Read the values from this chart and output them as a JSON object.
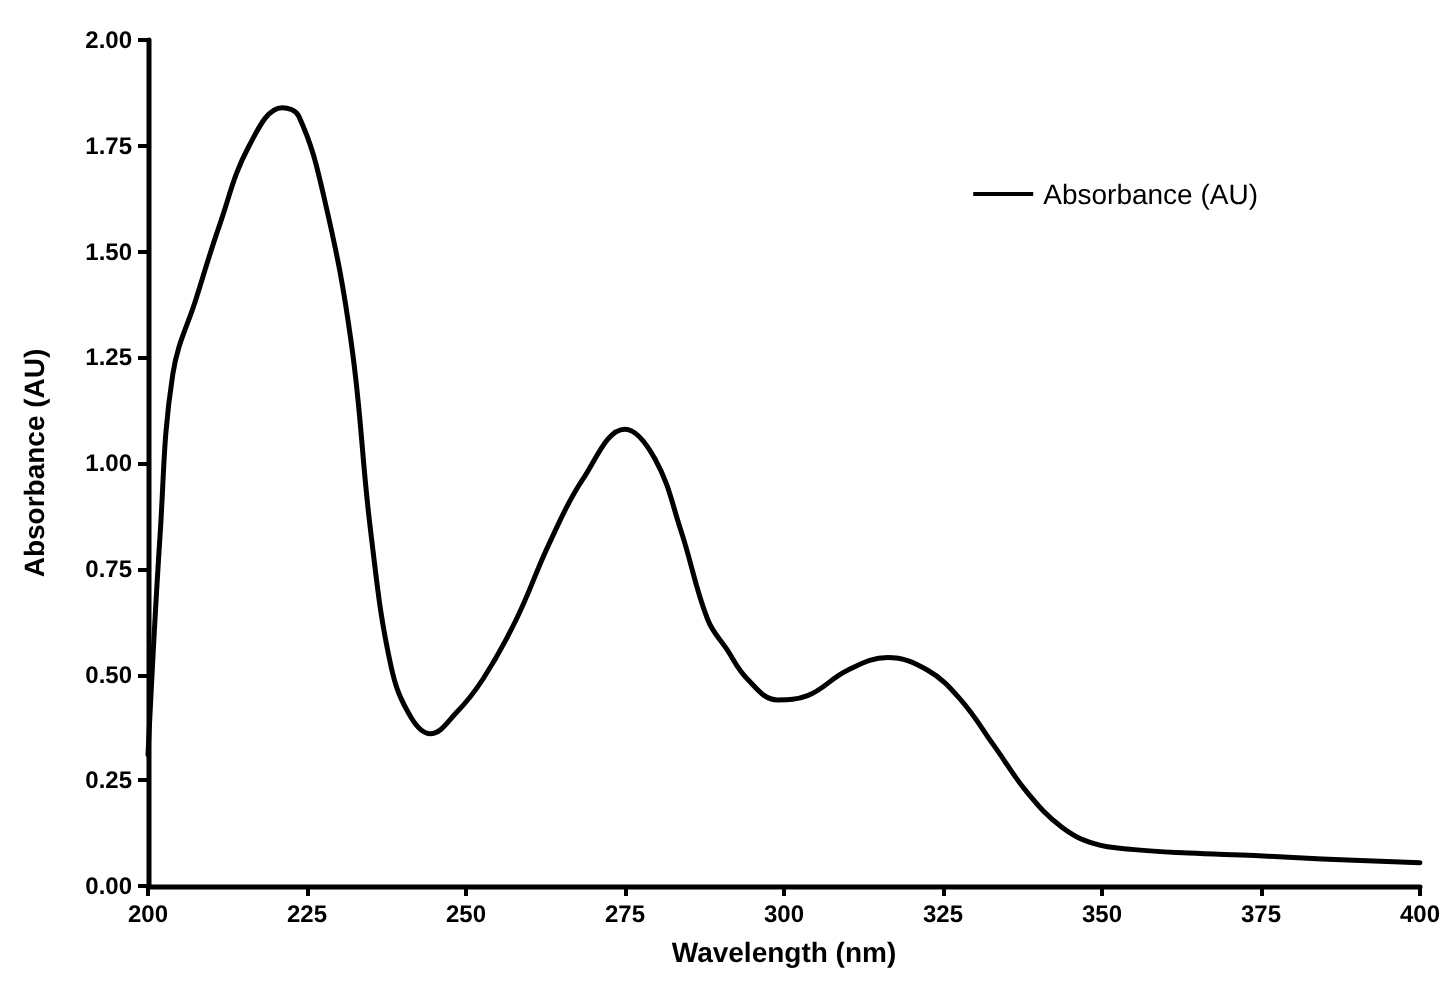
{
  "chart_data": {
    "type": "line",
    "xlabel": "Wavelength (nm)",
    "ylabel": "Absorbance (AU)",
    "xlim": [
      200,
      400
    ],
    "xticks": [
      200,
      225,
      250,
      275,
      300,
      325,
      350,
      375,
      400
    ],
    "ylim": [
      0,
      2
    ],
    "yticks": [
      {
        "value": 0,
        "label": "0.00"
      },
      {
        "value": 0.25,
        "label": "0.25"
      },
      {
        "value": 0.5,
        "label": "0.50"
      },
      {
        "value": 0.75,
        "label": "0.75"
      },
      {
        "value": 1,
        "label": "1.00"
      },
      {
        "value": 1.25,
        "label": "1.25"
      },
      {
        "value": 1.5,
        "label": "1.50"
      },
      {
        "value": 1.75,
        "label": "1.75"
      },
      {
        "value": 2,
        "label": "2.00"
      }
    ],
    "grid": false,
    "legend": "top right",
    "marker": "none",
    "line_style": "solid",
    "series": [
      {
        "name": "Absorbance (AU)",
        "color": "#000000",
        "x": [
          200,
          201.9,
          203.9,
          207.6,
          211.2,
          215.9,
          221.1,
          223.7,
          227.8,
          232,
          235,
          238.2,
          241.3,
          244.4,
          248.5,
          252.7,
          257.9,
          263.1,
          268.3,
          275,
          279.7,
          283.8,
          288,
          291,
          294.2,
          299,
          303.7,
          310,
          316.3,
          322.6,
          327.8,
          333.1,
          338.3,
          343.6,
          348.8,
          355.1,
          363.6,
          374,
          384.6,
          400
        ],
        "values": [
          0.31,
          0.83,
          1.21,
          1.39,
          1.56,
          1.75,
          1.84,
          1.82,
          1.62,
          1.28,
          0.84,
          0.52,
          0.4,
          0.36,
          0.41,
          0.49,
          0.63,
          0.81,
          0.96,
          1.08,
          1.01,
          0.84,
          0.63,
          0.56,
          0.49,
          0.44,
          0.45,
          0.51,
          0.54,
          0.51,
          0.44,
          0.33,
          0.22,
          0.14,
          0.1,
          0.086,
          0.078,
          0.072,
          0.064,
          0.055
        ]
      }
    ]
  }
}
